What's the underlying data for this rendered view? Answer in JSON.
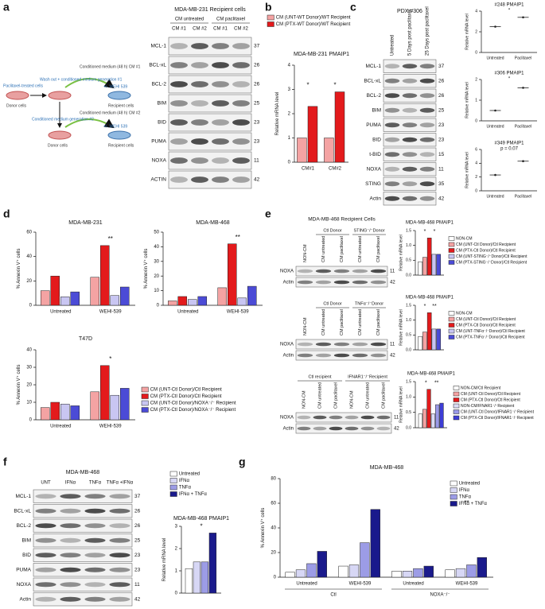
{
  "panel_letters": [
    "a",
    "b",
    "c",
    "d",
    "e",
    "f",
    "g"
  ],
  "panel_a": {
    "diagram": [
      "Paclitaxel-treated cells",
      "Donor cells",
      "Wash out + conditioned medium generation #1",
      "Conditioned medium (48 h) CM #1",
      "+/- WEHI 539",
      "Recipient cells",
      "Donor cells",
      "Conditioned medium generation #2",
      "Conditioned medium (48 h) CM #2",
      "+/- WEHI 539",
      "Recipient cells"
    ]
  },
  "blots": {
    "a": {
      "title": "MDA-MB-231 Recipient cells",
      "groups": [
        {
          "label": "CM untreated",
          "lanes": [
            "CM #1",
            "CM #2"
          ]
        },
        {
          "label": "CM paclitaxel",
          "lanes": [
            "CM #1",
            "CM #2"
          ]
        }
      ],
      "rows": [
        {
          "label": "MCL-1",
          "kda": 37
        },
        {
          "label": "BCL-xL",
          "kda": 26
        },
        {
          "label": "BCL-2",
          "kda": 26
        },
        {
          "label": "BIM",
          "kda": 25
        },
        {
          "label": "BID",
          "kda": 23
        },
        {
          "label": "PUMA",
          "kda": 23
        },
        {
          "label": "NOXA",
          "kda": 11
        },
        {
          "label": "ACTIN",
          "kda": 42
        }
      ]
    },
    "c": {
      "title": "PDX #306",
      "groups": [
        {
          "lanes": [
            "Untreated",
            "5 Days post paclitaxel",
            "25 Days post paclitaxel"
          ]
        }
      ],
      "rows": [
        {
          "label": "MCL-1",
          "kda": 37
        },
        {
          "label": "BCL-xL",
          "kda": 26
        },
        {
          "label": "BCL-2",
          "kda": 26
        },
        {
          "label": "BIM",
          "kda": 25
        },
        {
          "label": "PUMA",
          "kda": 23
        },
        {
          "label": "BID",
          "kda": 23
        },
        {
          "label": "t-BID",
          "kda": 15
        },
        {
          "label": "NOXA",
          "kda": 11
        },
        {
          "label": "STING",
          "kda": 35
        },
        {
          "label": "Actin",
          "kda": 42
        }
      ]
    },
    "e1": {
      "title": "MDA-MB-468 Recipient Cells",
      "groups": [
        {
          "lanes": [
            "NON-CM"
          ]
        },
        {
          "label": "Ctl Donor",
          "lanes": [
            "CM untreated",
            "CM paclitaxel"
          ]
        },
        {
          "label": "STING⁻/⁻Donor",
          "lanes": [
            "CM untreated",
            "CM paclitaxel"
          ]
        }
      ],
      "rows": [
        {
          "label": "NOXA",
          "kda": 11
        },
        {
          "label": "Actin",
          "kda": 42
        }
      ]
    },
    "e2": {
      "groups": [
        {
          "lanes": [
            "NON-CM"
          ]
        },
        {
          "label": "Ctl Donor",
          "lanes": [
            "CM untreated",
            "CM paclitaxel"
          ]
        },
        {
          "label": "TNFα⁻/⁻Donor",
          "lanes": [
            "CM untreated",
            "CM paclitaxel"
          ]
        }
      ],
      "rows": [
        {
          "label": "NOXA",
          "kda": 11
        },
        {
          "label": "Actin",
          "kda": 42
        }
      ]
    },
    "e3": {
      "groups": [
        {
          "label": "Ctl recipient",
          "lanes": [
            "NON-CM",
            "CM untreated",
            "CM paclitaxel"
          ]
        },
        {
          "label": "IFNAR1⁻/⁻Recipient",
          "lanes": [
            "NON-CM",
            "CM untreated",
            "CM paclitaxel"
          ]
        }
      ],
      "rows": [
        {
          "label": "NOXA",
          "kda": 11
        },
        {
          "label": "Actin",
          "kda": 42
        }
      ]
    },
    "f": {
      "title": "MDA-MB-468",
      "groups": [
        {
          "lanes": [
            "UNT",
            "IFNα",
            "TNFα",
            "TNFα +IFNα"
          ]
        }
      ],
      "rows": [
        {
          "label": "MCL-1",
          "kda": 37
        },
        {
          "label": "BCL-xL",
          "kda": 26
        },
        {
          "label": "BCL-2",
          "kda": 26
        },
        {
          "label": "BIM",
          "kda": 25
        },
        {
          "label": "BID",
          "kda": 23
        },
        {
          "label": "PUMA",
          "kda": 23
        },
        {
          "label": "NOXA",
          "kda": 11
        },
        {
          "label": "Actin",
          "kda": 42
        }
      ]
    }
  },
  "chart_data": [
    {
      "type": "bar",
      "title": "MDA-MB-231 PMAIP1",
      "y_label": "Relative mRNA level",
      "categories": [
        "CM#1",
        "CM#2"
      ],
      "series": [
        {
          "name": "CM (UNT-WT Donor)/WT Recipient",
          "color": "#f4a3a3",
          "values": [
            1.0,
            1.0
          ]
        },
        {
          "name": "CM (PTX-WT Donor)/WT Recipient",
          "color": "#e31a1c",
          "values": [
            2.3,
            2.9
          ]
        }
      ],
      "ylim": [
        0,
        4
      ],
      "yticks": [
        0,
        1,
        2,
        3,
        4
      ],
      "legend": "top",
      "significance": [
        "*",
        "*"
      ]
    },
    {
      "type": "dot",
      "title": "#248 PMAIP1",
      "y_label": "Relative mRNA level",
      "categories": [
        "Untreated",
        "Paclitaxel"
      ],
      "values": [
        2.5,
        3.4
      ],
      "color": "#222222",
      "ylim": [
        0,
        4
      ],
      "yticks": [
        0,
        2,
        4
      ],
      "significance": [
        "*"
      ]
    },
    {
      "type": "dot",
      "title": "#306 PMAIP1",
      "y_label": "Relative mRNA level",
      "categories": [
        "Untreated",
        "Paclitaxel"
      ],
      "values": [
        0.5,
        1.6
      ],
      "color": "#222222",
      "ylim": [
        0,
        2
      ],
      "yticks": [
        0,
        1,
        2
      ],
      "significance": [
        "*"
      ]
    },
    {
      "type": "dot",
      "title": "#349 PMAIP1",
      "y_label": "Relative mRNA level",
      "categories": [
        "Untreated",
        "Paclitaxel"
      ],
      "values": [
        2.3,
        4.3
      ],
      "color": "#222222",
      "ylim": [
        0,
        6
      ],
      "yticks": [
        0,
        2,
        4,
        6
      ],
      "significance": [
        "p = 0.07"
      ]
    },
    {
      "type": "bar",
      "title": "MDA-MB-231",
      "y_label": "% Annexin V⁺ cells",
      "categories": [
        "Untreated",
        "WEHI-539"
      ],
      "series": [
        {
          "color": "#f4a3a3",
          "values": [
            12,
            23
          ]
        },
        {
          "color": "#e31a1c",
          "values": [
            24,
            49
          ]
        },
        {
          "color": "#c9c6f2",
          "values": [
            7,
            8
          ]
        },
        {
          "color": "#4b4bd6",
          "values": [
            11,
            15
          ]
        }
      ],
      "ylim": [
        0,
        60
      ],
      "yticks": [
        0,
        20,
        40,
        60
      ],
      "significance": [
        "**"
      ]
    },
    {
      "type": "bar",
      "title": "MDA-MB-468",
      "y_label": "% Annexin V⁺ cells",
      "categories": [
        "Untreated",
        "WEHI-539"
      ],
      "series": [
        {
          "color": "#f4a3a3",
          "values": [
            3,
            12
          ]
        },
        {
          "color": "#e31a1c",
          "values": [
            6,
            42
          ]
        },
        {
          "color": "#c9c6f2",
          "values": [
            4,
            5
          ]
        },
        {
          "color": "#4b4bd6",
          "values": [
            6,
            13
          ]
        }
      ],
      "ylim": [
        0,
        50
      ],
      "yticks": [
        0,
        10,
        20,
        30,
        40,
        50
      ],
      "significance": [
        "**"
      ]
    },
    {
      "type": "bar",
      "title": "T47D",
      "y_label": "% Annexin V⁺ cells",
      "categories": [
        "Untreated",
        "WEHI-539"
      ],
      "series": [
        {
          "name": "CM (UNT-Ctl Donor)/Ctl Recipient",
          "color": "#f4a3a3",
          "values": [
            7,
            16
          ]
        },
        {
          "name": "CM (PTX-Ctl Donor)/Ctl Recipient",
          "color": "#e31a1c",
          "values": [
            10,
            31
          ]
        },
        {
          "name": "CM (UNT-Ctl Donor)/NOXA⁻/⁻ Recipient",
          "color": "#c9c6f2",
          "values": [
            9,
            14
          ]
        },
        {
          "name": "CM (PTX-Ctl Donor)/NOXA⁻/⁻ Recipient",
          "color": "#4b4bd6",
          "values": [
            8,
            18
          ]
        }
      ],
      "ylim": [
        0,
        40
      ],
      "yticks": [
        0,
        10,
        20,
        30,
        40
      ],
      "legend": "right",
      "significance": [
        "*"
      ]
    },
    {
      "type": "bar",
      "title": "MDA-MB-468 PMAIP1",
      "y_label": "Relative mRNA level",
      "categories": [
        null
      ],
      "series": [
        {
          "name": "NON-CM",
          "color": "#ffffff",
          "values": [
            0.45
          ]
        },
        {
          "name": "CM (UNT-Ctl Donor)/Ctl Recipient",
          "color": "#f4a3a3",
          "values": [
            0.6
          ]
        },
        {
          "name": "CM (PTX-Ctl Donor)/Ctl Recipient",
          "color": "#e31a1c",
          "values": [
            1.25
          ]
        },
        {
          "name": "CM (UNT-STING⁻/⁻Donor)/Ctl Recipient",
          "color": "#c9c6f2",
          "values": [
            0.7
          ]
        },
        {
          "name": "CM (PTX-STING⁻/⁻Donor)/Ctl Recipient",
          "color": "#4b4bd6",
          "values": [
            0.7
          ]
        }
      ],
      "ylim": [
        0,
        1.5
      ],
      "yticks": [
        {
          "value": 0,
          "label": "0.0"
        },
        0.5,
        {
          "value": 1,
          "label": "1.0"
        },
        1.5
      ],
      "legend": "right",
      "significance": [
        "*",
        "*"
      ]
    },
    {
      "type": "bar",
      "title": "MDA-MB-468 PMAIP1",
      "y_label": "Relative mRNA level",
      "categories": [
        null
      ],
      "series": [
        {
          "name": "NON-CM",
          "color": "#ffffff",
          "values": [
            0.45
          ]
        },
        {
          "name": "CM (UNT-Ctl Donor)/Ctl Recipient",
          "color": "#f4a3a3",
          "values": [
            0.6
          ]
        },
        {
          "name": "CM (PTX-Ctl Donor)/Ctl Recipient",
          "color": "#e31a1c",
          "values": [
            1.25
          ]
        },
        {
          "name": "CM (UNT-TNFα⁻/⁻Donor)/Ctl Recipient",
          "color": "#c9c6f2",
          "values": [
            0.7
          ]
        },
        {
          "name": "CM (PTX-TNFα⁻/⁻Donor)/Ctl Recipient",
          "color": "#4b4bd6",
          "values": [
            0.7
          ]
        }
      ],
      "ylim": [
        0,
        1.5
      ],
      "yticks": [
        {
          "value": 0,
          "label": "0.0"
        },
        0.5,
        {
          "value": 1,
          "label": "1.0"
        },
        1.5
      ],
      "legend": "right",
      "significance": [
        "*",
        "**"
      ]
    },
    {
      "type": "bar",
      "title": "MDA-MB-468 PMAIP1",
      "y_label": "Relative mRNA level",
      "categories": [
        null
      ],
      "series": [
        {
          "name": "NON-CM/Ctl Recipient",
          "color": "#ffffff",
          "values": [
            0.45
          ]
        },
        {
          "name": "CM (UNT-Ctl Donor)/Ctl Recipient",
          "color": "#f4a3a3",
          "values": [
            0.6
          ]
        },
        {
          "name": "CM (PTX-Ctl Donor)/Ctl Recipient",
          "color": "#e31a1c",
          "values": [
            1.25
          ]
        },
        {
          "name": "NON-CM/IFNAR1⁻/⁻Recipient",
          "color": "#dcdcf5",
          "values": [
            0.45
          ]
        },
        {
          "name": "CM (UNT-Ctl Donor)/IFNAR1⁻/⁻Recipient",
          "color": "#9a9ae8",
          "values": [
            0.75
          ]
        },
        {
          "name": "CM (PTX-Ctl Donor)/IFNAR1⁻/⁻Recipient",
          "color": "#3d3dd6",
          "values": [
            0.8
          ]
        }
      ],
      "ylim": [
        0,
        1.5
      ],
      "yticks": [
        {
          "value": 0,
          "label": "0.0"
        },
        0.5,
        {
          "value": 1,
          "label": "1.0"
        },
        1.5
      ],
      "legend": "right",
      "significance": [
        "*",
        "**"
      ]
    },
    {
      "type": "bar",
      "title": "MDA-MB-468 PMAIP1",
      "y_label": "Relative mRNA level",
      "categories": [
        null
      ],
      "series": [
        {
          "name": "Untreated",
          "color": "#ffffff",
          "values": [
            1.1
          ]
        },
        {
          "name": "IFNα",
          "color": "#d7d7f5",
          "values": [
            1.4
          ]
        },
        {
          "name": "TNFα",
          "color": "#9c9ce6",
          "values": [
            1.4
          ]
        },
        {
          "name": "IFNα + TNFα",
          "color": "#1a1a8c",
          "values": [
            2.7
          ]
        }
      ],
      "ylim": [
        0,
        3
      ],
      "yticks": [
        0,
        1,
        2,
        3
      ],
      "legend": "top",
      "significance": [
        "*"
      ]
    },
    {
      "type": "bar",
      "title": "MDA-MB-468",
      "y_label": "% Annexin V⁺ cells",
      "categories": [
        "Untreated",
        "WEHI-539",
        "Untreated",
        "WEHI-539"
      ],
      "groups": [
        "Ctl",
        "NOXA⁻/⁻"
      ],
      "series": [
        {
          "name": "Untreated",
          "color": "#ffffff",
          "values": [
            4,
            9,
            5,
            6
          ]
        },
        {
          "name": "IFNα",
          "color": "#d7d7f5",
          "values": [
            6,
            10,
            5,
            7
          ]
        },
        {
          "name": "TNFα",
          "color": "#9c9ce6",
          "values": [
            11,
            28,
            7,
            10
          ]
        },
        {
          "name": "IFNα + TNFα",
          "color": "#1a1a8c",
          "values": [
            21,
            55,
            9,
            16
          ]
        }
      ],
      "ylim": [
        0,
        80
      ],
      "yticks": [
        0,
        20,
        40,
        60,
        80
      ],
      "legend": "right",
      "significance": [
        "**"
      ]
    }
  ]
}
